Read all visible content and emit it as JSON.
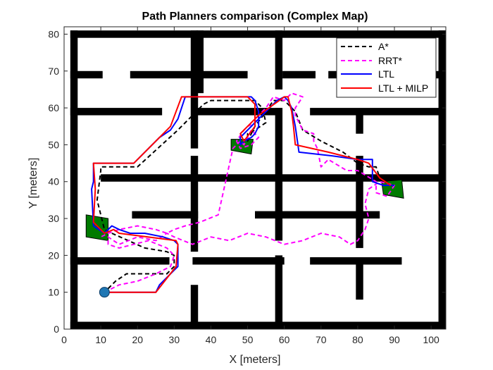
{
  "chart_data": {
    "type": "line",
    "title": "Path Planners comparison (Complex Map)",
    "xlabel": "X [meters]",
    "ylabel": "Y [meters]",
    "xlim": [
      0,
      104
    ],
    "ylim": [
      0,
      82
    ],
    "xticks": [
      0,
      10,
      20,
      30,
      40,
      50,
      60,
      70,
      80,
      90,
      100
    ],
    "yticks": [
      0,
      10,
      20,
      30,
      40,
      50,
      60,
      70,
      80
    ],
    "grid": false,
    "legend_position": "top-right",
    "legend": [
      "A*",
      "RRT*",
      "LTL",
      "LTL + MILP"
    ],
    "colors": {
      "wall": "#000000",
      "goal_region": "#007a00",
      "start_marker": "#1f77b4",
      "astar": "#000000",
      "rrt": "#ff00ff",
      "ltl": "#0000ff",
      "milp": "#ff0000"
    },
    "walls": [
      [
        1.7,
        0,
        2,
        81
      ],
      [
        102,
        0,
        2,
        81
      ],
      [
        1.7,
        0,
        102.3,
        2
      ],
      [
        1.7,
        79,
        102.3,
        2
      ],
      [
        1.7,
        68,
        8.8,
        2
      ],
      [
        18,
        68,
        32,
        2
      ],
      [
        59.5,
        68,
        9,
        2
      ],
      [
        72,
        68,
        32,
        2
      ],
      [
        1.7,
        58,
        25,
        2
      ],
      [
        35,
        58,
        24,
        2
      ],
      [
        67,
        58,
        37,
        2
      ],
      [
        1.7,
        17.5,
        27,
        2
      ],
      [
        35,
        17.5,
        25,
        2
      ],
      [
        67,
        17.5,
        25,
        2
      ],
      [
        10,
        40,
        94,
        2
      ],
      [
        18.5,
        30,
        18,
        2
      ],
      [
        52,
        30,
        34,
        2
      ],
      [
        34.5,
        0,
        2,
        12
      ],
      [
        34.5,
        21,
        2,
        26
      ],
      [
        34.5,
        49,
        2,
        32
      ],
      [
        57.5,
        0,
        2,
        20
      ],
      [
        57.5,
        24,
        2,
        36
      ],
      [
        57.5,
        65,
        2,
        16
      ],
      [
        79.5,
        8,
        2,
        11
      ],
      [
        79.5,
        22,
        2,
        25
      ],
      [
        79.5,
        53,
        2,
        6
      ],
      [
        36,
        64,
        2,
        17
      ]
    ],
    "goal_regions": [
      [
        [
          6,
          31
        ],
        [
          12,
          30
        ],
        [
          12,
          24
        ],
        [
          6,
          25
        ]
      ],
      [
        [
          45.5,
          51.5
        ],
        [
          51.5,
          51.5
        ],
        [
          51,
          47.5
        ],
        [
          45.5,
          48.5
        ]
      ],
      [
        [
          86.5,
          40
        ],
        [
          92,
          40.5
        ],
        [
          92.5,
          35.5
        ],
        [
          87,
          36.5
        ]
      ]
    ],
    "start": [
      11,
      10
    ],
    "series": [
      {
        "name": "A*",
        "x": [
          12,
          14,
          17,
          28,
          30,
          30,
          28,
          22,
          13,
          11,
          9,
          10,
          10,
          20,
          31,
          35,
          38,
          40,
          52,
          54,
          55,
          52,
          50,
          50,
          52,
          55,
          57,
          60,
          63,
          65,
          70,
          76,
          80,
          83,
          85,
          86,
          89
        ],
        "y": [
          11,
          13,
          15,
          15,
          17,
          20,
          21,
          22,
          26,
          27,
          35,
          43,
          44,
          44,
          54,
          58,
          61,
          62,
          62,
          60,
          56,
          54,
          53,
          51,
          55,
          59,
          62,
          62,
          59,
          54,
          51,
          48,
          45,
          44,
          44,
          41,
          39
        ]
      },
      {
        "name": "RRT*",
        "x": [
          11,
          15,
          20,
          25,
          29,
          30,
          28,
          23,
          15,
          12,
          12,
          15,
          20,
          25,
          28,
          30,
          35,
          40,
          45,
          50,
          55,
          60,
          65,
          70,
          75,
          78,
          80,
          82,
          83,
          82,
          83,
          86,
          90,
          88,
          85,
          85,
          80,
          77,
          72,
          70,
          69,
          68,
          68,
          65,
          64,
          63,
          63,
          65,
          62,
          60,
          57,
          55,
          53,
          52,
          50,
          49,
          47,
          48,
          51,
          53,
          51,
          50,
          49,
          48,
          46,
          42,
          37,
          33,
          30,
          28,
          25,
          20,
          15,
          12,
          10
        ],
        "y": [
          10,
          12,
          13,
          15,
          17,
          20,
          22,
          24,
          22,
          23,
          25,
          23,
          25,
          24,
          26,
          25,
          23,
          25,
          24,
          26,
          25,
          23,
          24,
          26,
          25,
          23,
          24,
          27,
          30,
          34,
          38,
          40,
          39,
          36,
          37,
          40,
          43,
          43,
          46,
          44,
          49,
          51,
          53,
          54,
          56,
          58,
          60,
          63,
          64,
          62,
          63,
          60,
          58,
          56,
          55,
          54,
          51,
          49,
          50,
          52,
          54,
          52,
          50,
          51,
          49,
          31,
          29,
          28,
          27,
          26,
          27,
          28,
          27,
          26,
          25
        ]
      },
      {
        "name": "LTL",
        "x": [
          11,
          25,
          26,
          27,
          28,
          29,
          30,
          31,
          31,
          30,
          27,
          22,
          18,
          15,
          13,
          11,
          8,
          7.5,
          8,
          8,
          14,
          19,
          26,
          29,
          31,
          32,
          33,
          51,
          52,
          53,
          53,
          52,
          51,
          49,
          48,
          48,
          50,
          52,
          54,
          56,
          58,
          60,
          61,
          62,
          63,
          64,
          73,
          80,
          84,
          84,
          87,
          90
        ],
        "y": [
          10,
          10,
          12,
          13,
          14,
          15,
          16,
          17,
          23,
          24,
          25,
          26,
          26,
          27,
          28,
          26,
          28,
          38,
          40,
          45,
          45,
          45,
          52,
          54,
          57,
          60,
          63,
          63,
          62,
          59,
          55,
          53,
          52,
          51,
          50,
          52,
          54,
          56,
          58,
          60,
          62,
          63,
          62,
          60,
          55,
          48,
          47,
          46,
          46,
          40,
          39,
          39
        ]
      },
      {
        "name": "LTL + MILP",
        "x": [
          11,
          25,
          30.5,
          31,
          30.5,
          15,
          13.5,
          11,
          8,
          8.5,
          8,
          19,
          29,
          32,
          37,
          50,
          52,
          52,
          49,
          48,
          53,
          60,
          61,
          62,
          62.5,
          63,
          72,
          80,
          83,
          86,
          89
        ],
        "y": [
          10,
          10,
          17,
          23,
          24,
          26,
          27,
          26,
          29,
          38,
          45,
          45,
          55,
          63,
          63,
          63,
          61,
          55,
          51,
          53,
          58,
          63,
          63,
          59,
          55,
          50,
          48,
          46,
          45,
          41,
          39
        ]
      }
    ]
  }
}
